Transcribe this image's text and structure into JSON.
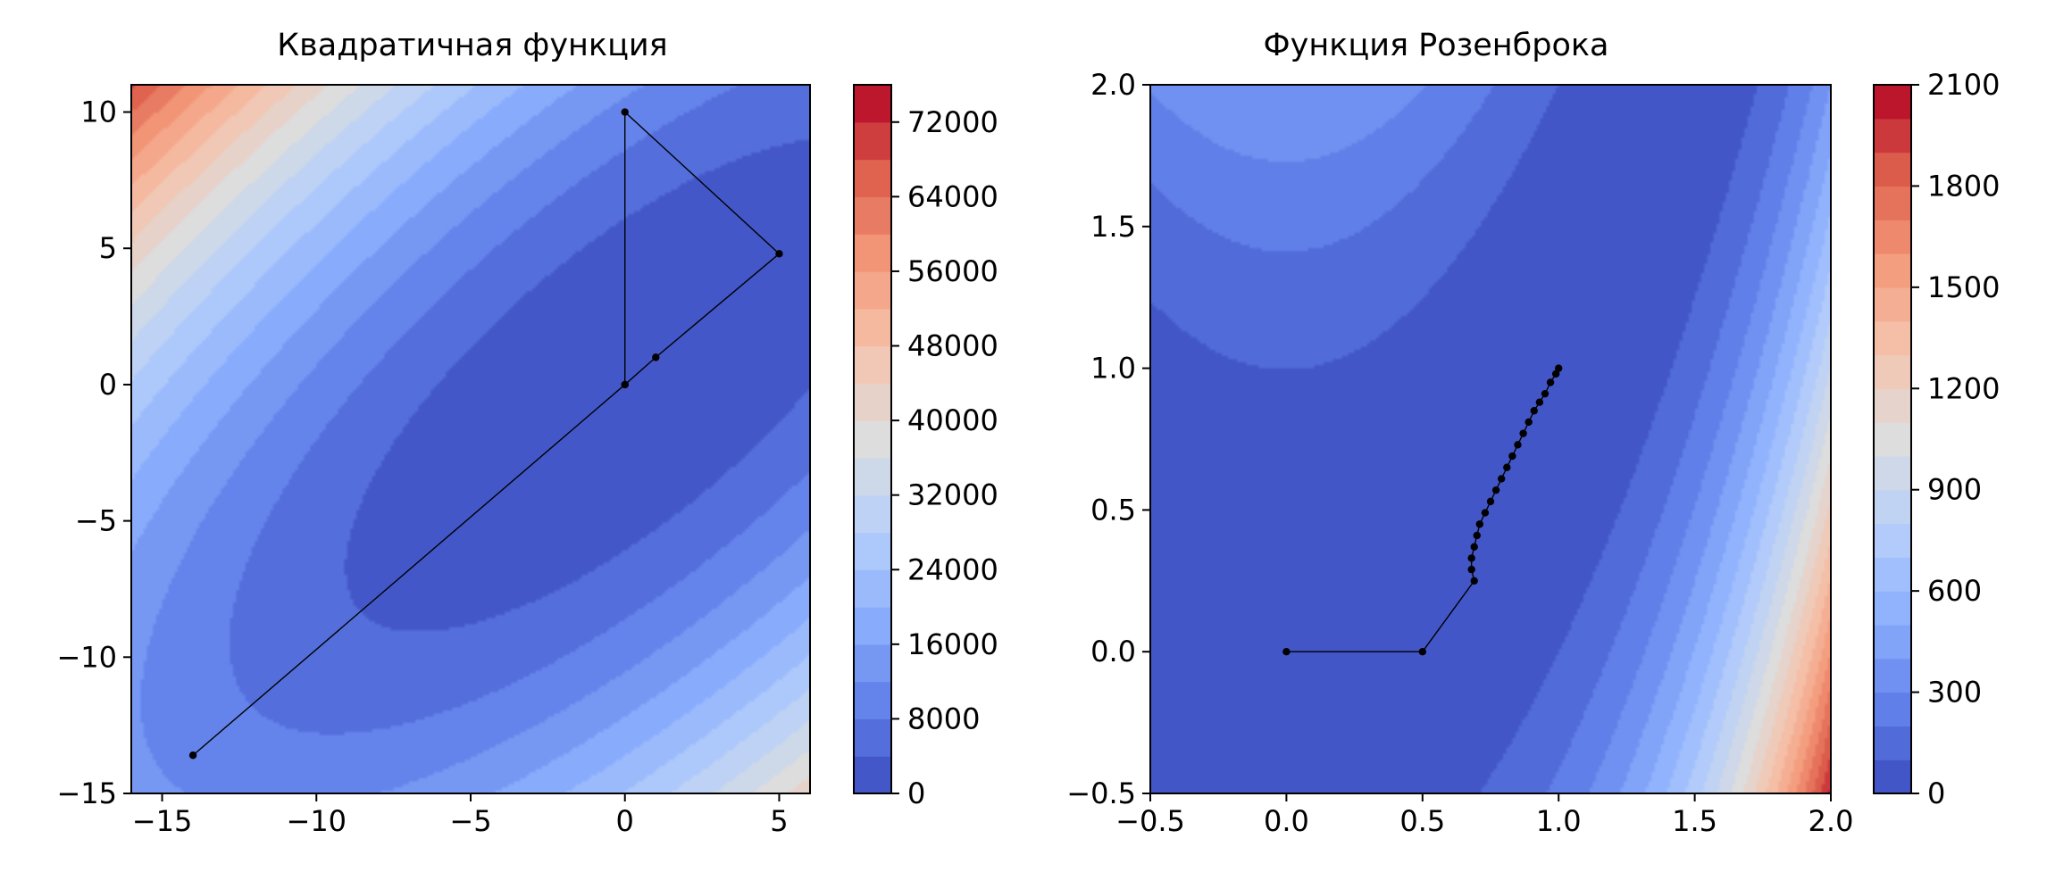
{
  "chart_data": [
    {
      "type": "contour",
      "title": "Квадратичная функция",
      "xlabel": "",
      "ylabel": "",
      "xlim": [
        -16,
        6
      ],
      "ylim": [
        -15,
        11
      ],
      "xticks": [
        -15,
        -10,
        -5,
        0,
        5
      ],
      "yticks": [
        -15,
        -10,
        -5,
        0,
        5,
        10
      ],
      "xtick_labels": [
        "−15",
        "−10",
        "−5",
        "0",
        "5"
      ],
      "ytick_labels": [
        "−15",
        "−10",
        "−5",
        "0",
        "5",
        "10"
      ],
      "contour_levels": [
        0,
        4000,
        8000,
        12000,
        16000,
        20000,
        24000,
        28000,
        32000,
        36000,
        40000,
        44000,
        48000,
        52000,
        56000,
        60000,
        64000,
        68000,
        72000,
        76000
      ],
      "colormap": "coolwarm",
      "colorbar": {
        "min": 0,
        "max": 76000,
        "ticks": [
          0,
          8000,
          16000,
          24000,
          32000,
          40000,
          48000,
          56000,
          64000,
          72000
        ],
        "tick_labels": [
          "0",
          "8000",
          "16000",
          "24000",
          "32000",
          "40000",
          "48000",
          "56000",
          "64000",
          "72000"
        ]
      },
      "path": {
        "color": "#000000",
        "points": [
          [
            -14,
            -13.6
          ],
          [
            0,
            0
          ],
          [
            1,
            1
          ],
          [
            5,
            4.8
          ],
          [
            0,
            10
          ],
          [
            0,
            0
          ]
        ]
      }
    },
    {
      "type": "contour",
      "title": "Функция Розенброка",
      "xlabel": "",
      "ylabel": "",
      "xlim": [
        -0.5,
        2.0
      ],
      "ylim": [
        -0.5,
        2.0
      ],
      "xticks": [
        -0.5,
        0.0,
        0.5,
        1.0,
        1.5,
        2.0
      ],
      "yticks": [
        -0.5,
        0.0,
        0.5,
        1.0,
        1.5,
        2.0
      ],
      "xtick_labels": [
        "−0.5",
        "0.0",
        "0.5",
        "1.0",
        "1.5",
        "2.0"
      ],
      "ytick_labels": [
        "−0.5",
        "0.0",
        "0.5",
        "1.0",
        "1.5",
        "2.0"
      ],
      "contour_levels": [
        0,
        100,
        200,
        300,
        400,
        500,
        600,
        700,
        800,
        900,
        1000,
        1100,
        1200,
        1300,
        1400,
        1500,
        1600,
        1700,
        1800,
        1900,
        2000,
        2100
      ],
      "colormap": "coolwarm",
      "colorbar": {
        "min": 0,
        "max": 2100,
        "ticks": [
          0,
          300,
          600,
          900,
          1200,
          1500,
          1800,
          2100
        ],
        "tick_labels": [
          "0",
          "300",
          "600",
          "900",
          "1200",
          "1500",
          "1800",
          "2100"
        ]
      },
      "path": {
        "color": "#000000",
        "points": [
          [
            0,
            0
          ],
          [
            0.5,
            0
          ],
          [
            0.69,
            0.25
          ],
          [
            0.68,
            0.29
          ],
          [
            0.68,
            0.33
          ],
          [
            0.69,
            0.37
          ],
          [
            0.7,
            0.41
          ],
          [
            0.71,
            0.45
          ],
          [
            0.73,
            0.49
          ],
          [
            0.75,
            0.53
          ],
          [
            0.77,
            0.57
          ],
          [
            0.79,
            0.61
          ],
          [
            0.81,
            0.65
          ],
          [
            0.83,
            0.69
          ],
          [
            0.85,
            0.73
          ],
          [
            0.87,
            0.77
          ],
          [
            0.89,
            0.81
          ],
          [
            0.91,
            0.85
          ],
          [
            0.93,
            0.88
          ],
          [
            0.95,
            0.91
          ],
          [
            0.97,
            0.95
          ],
          [
            0.99,
            0.98
          ],
          [
            1.0,
            1.0
          ]
        ]
      }
    }
  ]
}
